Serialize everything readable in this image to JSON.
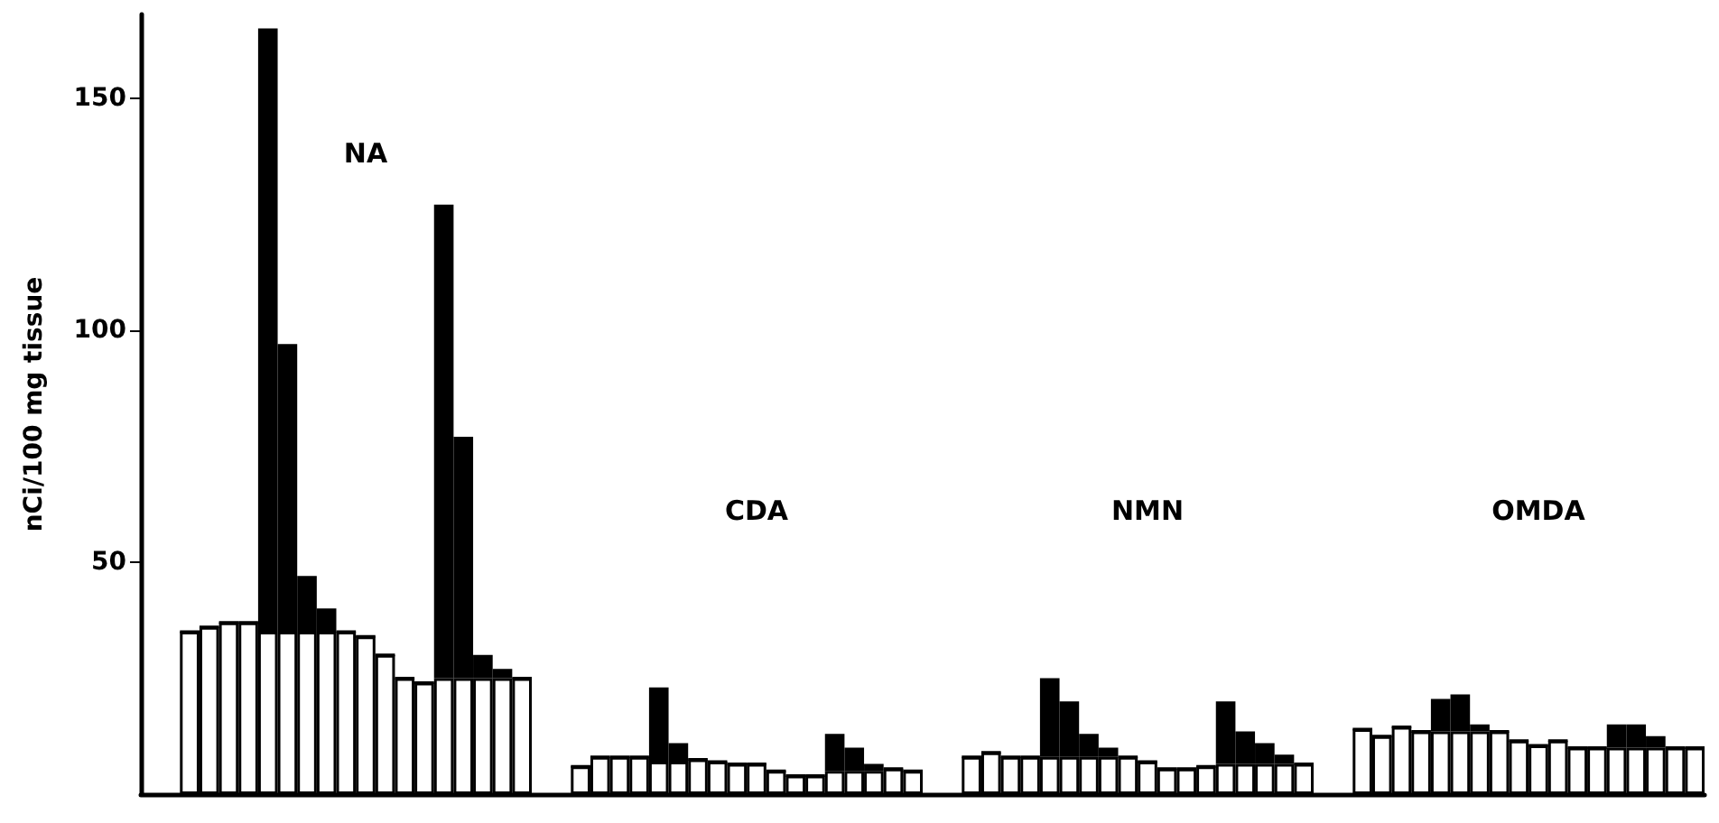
{
  "chart_data": {
    "type": "bar",
    "stacked": true,
    "ylabel": "nCi/100 mg tissue",
    "tick_labels": "y",
    "ylim": [
      0,
      168
    ],
    "yticks": [
      50,
      100,
      150
    ],
    "annotations": [
      "NA",
      "CDA",
      "NMN",
      "OMDA"
    ],
    "categories": [
      null,
      null,
      null,
      null,
      null,
      null,
      null,
      null,
      null,
      null,
      null,
      null,
      null,
      null,
      null,
      null,
      null,
      null,
      null,
      null,
      null,
      null,
      null,
      null,
      null,
      null,
      null,
      null,
      null,
      null,
      null,
      null,
      null,
      null,
      null,
      null,
      null,
      null,
      null,
      null,
      null,
      null,
      null,
      null,
      null,
      null,
      null,
      null,
      null,
      null,
      null,
      null,
      null,
      null,
      null,
      null,
      null,
      null,
      null,
      null,
      null,
      null,
      null,
      null,
      null,
      null,
      null,
      null,
      null,
      null,
      null,
      null,
      null,
      null,
      null,
      null,
      null,
      null,
      null,
      null
    ],
    "series": [
      {
        "color": "#ffffff",
        "values": [
          null,
          null,
          35,
          36,
          37,
          37,
          35,
          35,
          35,
          35,
          35,
          34,
          30,
          25,
          24,
          25,
          25,
          25,
          25,
          25,
          null,
          null,
          6,
          8,
          8,
          8,
          7,
          7,
          7.5,
          7,
          6.5,
          6.5,
          5,
          4,
          4,
          5,
          5,
          5,
          5.5,
          5,
          null,
          null,
          8,
          9,
          8,
          8,
          8,
          8,
          8,
          8,
          8,
          7,
          5.5,
          5.5,
          6,
          6.5,
          6.5,
          6.5,
          6.5,
          6.5,
          null,
          null,
          14,
          12.5,
          14.5,
          13.5,
          13.5,
          13.5,
          13.5,
          13.5,
          11.5,
          10.5,
          11.5,
          10,
          10,
          10,
          10,
          10,
          10,
          10
        ]
      },
      {
        "color": "#000000",
        "values": [
          null,
          null,
          0,
          0,
          0,
          0,
          130,
          62,
          12,
          5,
          0,
          0,
          0,
          0,
          0,
          102,
          52,
          5,
          2,
          0,
          null,
          null,
          0,
          0,
          0,
          0,
          16,
          4,
          0,
          0,
          0,
          0,
          0,
          0,
          0,
          8,
          5,
          1.5,
          0,
          0,
          null,
          null,
          0,
          0,
          0,
          0,
          17,
          12,
          5,
          2,
          0,
          0,
          0,
          0,
          0,
          13.5,
          7,
          4.5,
          2,
          0,
          null,
          null,
          0,
          0,
          0,
          0,
          7,
          8,
          1.5,
          0,
          0,
          0,
          0,
          0,
          0,
          5,
          5,
          2.5,
          0,
          0
        ]
      }
    ]
  }
}
